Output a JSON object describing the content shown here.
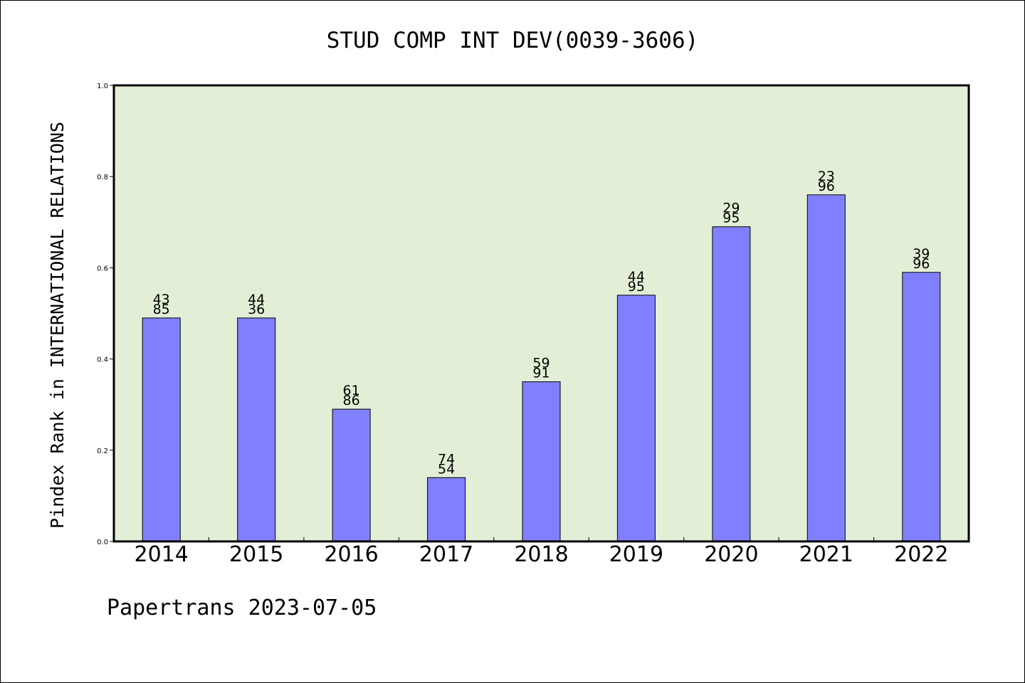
{
  "chart_data": {
    "type": "bar",
    "title": "STUD COMP INT DEV(0039-3606)",
    "ylabel": "Pindex Rank in INTERNATIONAL RELATIONS",
    "xlabel": "",
    "categories": [
      "2014",
      "2015",
      "2016",
      "2017",
      "2018",
      "2019",
      "2020",
      "2021",
      "2022"
    ],
    "values": [
      0.49,
      0.49,
      0.29,
      0.14,
      0.35,
      0.54,
      0.69,
      0.76,
      0.59
    ],
    "bar_labels": [
      [
        "43",
        "85"
      ],
      [
        "44",
        "36"
      ],
      [
        "61",
        "86"
      ],
      [
        "74",
        "54"
      ],
      [
        "59",
        "91"
      ],
      [
        "44",
        "95"
      ],
      [
        "29",
        "95"
      ],
      [
        "23",
        "96"
      ],
      [
        "39",
        "96"
      ]
    ],
    "ylim": [
      0.0,
      1.0
    ],
    "yticks": [
      "0.0",
      "0.2",
      "0.4",
      "0.6",
      "0.8",
      "1.0"
    ],
    "grid": false,
    "colors": {
      "bar": "#8080ff",
      "plot_background": "#e2efd6",
      "axes": "#000000"
    }
  },
  "footer": {
    "text": "Papertrans 2023-07-05"
  }
}
